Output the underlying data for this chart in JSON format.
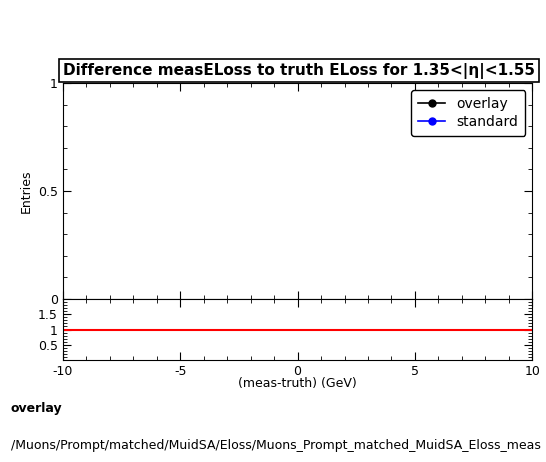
{
  "title": "Difference measELoss to truth ELoss for 1.35<|η|<1.55",
  "ylabel_main": "Entries",
  "xlabel": "(meas-truth) (GeV)",
  "xlim": [
    -10,
    10
  ],
  "ylim_main": [
    0,
    1
  ],
  "ylim_ratio": [
    0,
    2
  ],
  "ratio_yticks": [
    0.5,
    1,
    1.5
  ],
  "main_yticks": [
    0,
    0.5,
    1
  ],
  "legend_entries": [
    {
      "label": "overlay",
      "color": "#000000",
      "marker": "o"
    },
    {
      "label": "standard",
      "color": "#0000ff",
      "marker": "o"
    }
  ],
  "ratio_line_color": "#ff0000",
  "ratio_line_y": 1.0,
  "footer_text1": "overlay",
  "footer_text2": "/Muons/Prompt/matched/MuidSA/Eloss/Muons_Prompt_matched_MuidSA_Eloss_meas",
  "background_color": "#ffffff",
  "title_box_color": "#ffffff",
  "title_fontsize": 11,
  "label_fontsize": 9,
  "tick_fontsize": 9,
  "legend_fontsize": 10,
  "footer_fontsize": 9
}
